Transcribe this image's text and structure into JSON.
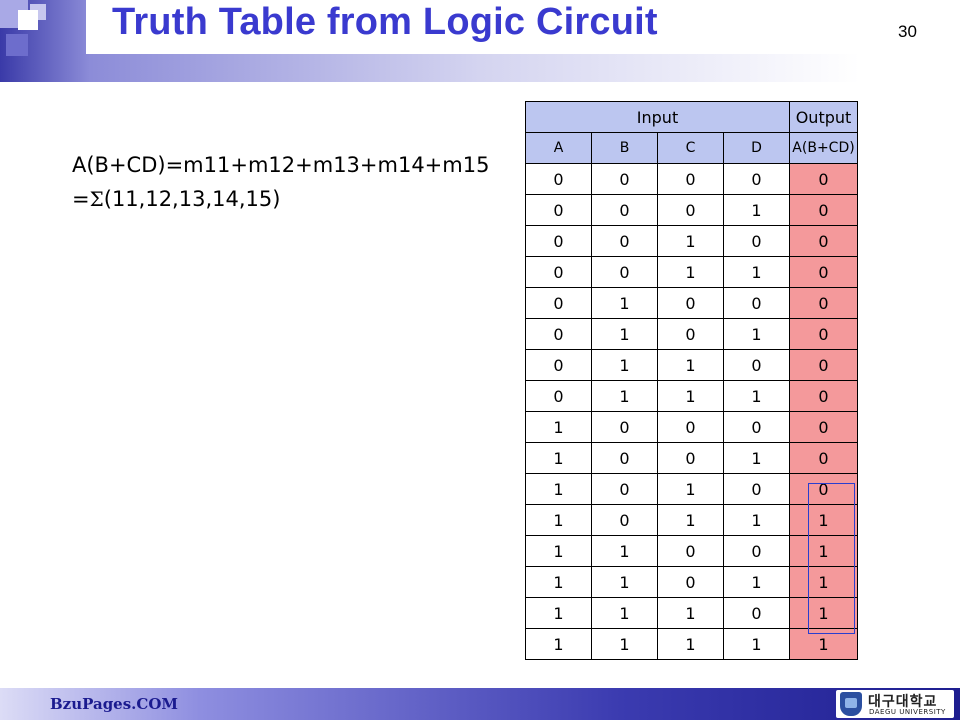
{
  "slide": {
    "title": "Truth Table from Logic Circuit",
    "page_number": "30",
    "expression_line1": "A(B+CD)=m11+m12+m13+m14+m15",
    "expression_line2_prefix": "=",
    "expression_line2_sigma": "Σ",
    "expression_line2_rest": "(11,12,13,14,15)"
  },
  "table": {
    "group_headers": [
      "Input",
      "Output"
    ],
    "columns": [
      "A",
      "B",
      "C",
      "D",
      "A(B+CD)"
    ],
    "rows": [
      [
        "0",
        "0",
        "0",
        "0",
        "0"
      ],
      [
        "0",
        "0",
        "0",
        "1",
        "0"
      ],
      [
        "0",
        "0",
        "1",
        "0",
        "0"
      ],
      [
        "0",
        "0",
        "1",
        "1",
        "0"
      ],
      [
        "0",
        "1",
        "0",
        "0",
        "0"
      ],
      [
        "0",
        "1",
        "0",
        "1",
        "0"
      ],
      [
        "0",
        "1",
        "1",
        "0",
        "0"
      ],
      [
        "0",
        "1",
        "1",
        "1",
        "0"
      ],
      [
        "1",
        "0",
        "0",
        "0",
        "0"
      ],
      [
        "1",
        "0",
        "0",
        "1",
        "0"
      ],
      [
        "1",
        "0",
        "1",
        "0",
        "0"
      ],
      [
        "1",
        "0",
        "1",
        "1",
        "1"
      ],
      [
        "1",
        "1",
        "0",
        "0",
        "1"
      ],
      [
        "1",
        "1",
        "0",
        "1",
        "1"
      ],
      [
        "1",
        "1",
        "1",
        "0",
        "1"
      ],
      [
        "1",
        "1",
        "1",
        "1",
        "1"
      ]
    ],
    "header_color": "#bcc6f0",
    "output_color": "#f4999b"
  },
  "footer": {
    "site": "BzuPages.COM",
    "logo_name": "대구대학교",
    "logo_sub": "DAEGU UNIVERSITY"
  },
  "colors": {
    "title": "#3a3acf",
    "accent": "#3a3aa8",
    "highlight": "#2a3ecf"
  }
}
